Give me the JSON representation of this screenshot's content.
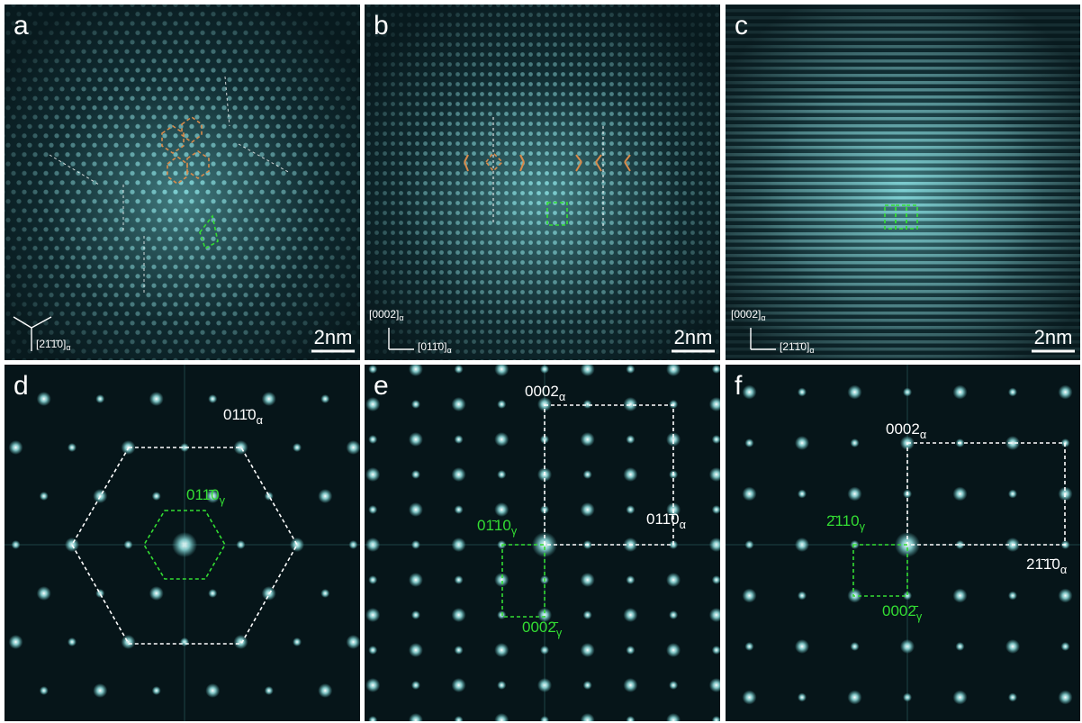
{
  "panels": [
    {
      "label": "a",
      "scale_bar": "2nm",
      "directions": [
        {
          "index": "[21̄1̄0]",
          "phase": "α"
        }
      ]
    },
    {
      "label": "b",
      "scale_bar": "2nm",
      "directions": [
        {
          "index": "[0002]",
          "phase": "α"
        },
        {
          "index": "[011̄0]",
          "phase": "α"
        }
      ]
    },
    {
      "label": "c",
      "scale_bar": "2nm",
      "directions": [
        {
          "index": "[0002]",
          "phase": "α"
        },
        {
          "index": "[21̄1̄0]",
          "phase": "α"
        }
      ]
    },
    {
      "label": "d",
      "spots": [
        {
          "index": "011̄0",
          "phase": "α",
          "color": "#ffffff"
        },
        {
          "index": "011̄0",
          "phase": "γ",
          "color": "#33dd33"
        }
      ]
    },
    {
      "label": "e",
      "spots": [
        {
          "index": "0002",
          "phase": "α",
          "color": "#ffffff"
        },
        {
          "index": "011̄0",
          "phase": "α",
          "color": "#ffffff"
        },
        {
          "index": "01̄10",
          "phase": "γ",
          "color": "#33dd33"
        },
        {
          "index": "0002̄",
          "phase": "γ",
          "color": "#33dd33"
        }
      ]
    },
    {
      "label": "f",
      "spots": [
        {
          "index": "0002",
          "phase": "α",
          "color": "#ffffff"
        },
        {
          "index": "21̄1̄0",
          "phase": "α",
          "color": "#ffffff"
        },
        {
          "index": "2̄110",
          "phase": "γ",
          "color": "#33dd33"
        },
        {
          "index": "0002̄",
          "phase": "γ",
          "color": "#33dd33"
        }
      ]
    }
  ]
}
